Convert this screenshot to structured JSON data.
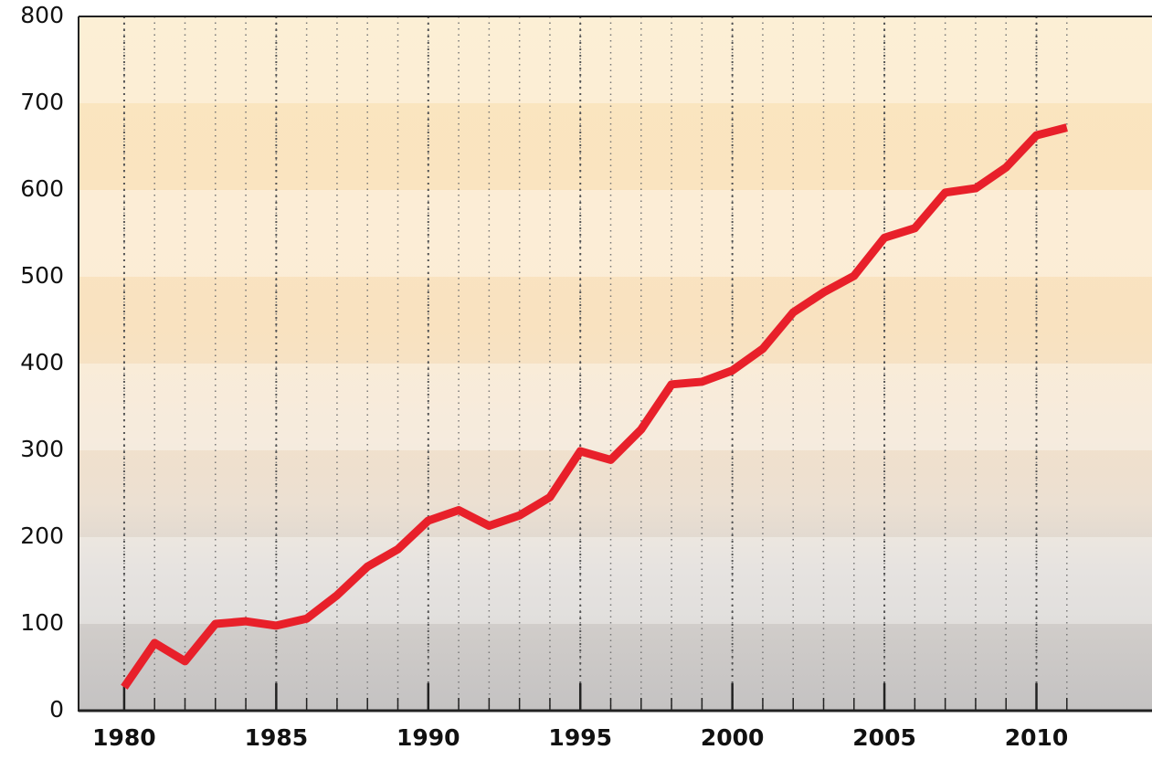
{
  "chart_data": {
    "type": "line",
    "x": [
      1980,
      1981,
      1982,
      1983,
      1984,
      1985,
      1986,
      1987,
      1988,
      1989,
      1990,
      1991,
      1992,
      1993,
      1994,
      1995,
      1996,
      1997,
      1998,
      1999,
      2000,
      2001,
      2002,
      2003,
      2004,
      2005,
      2006,
      2007,
      2008,
      2009,
      2010,
      2011
    ],
    "series": [
      {
        "color": "#e8202a",
        "values": [
          27,
          78,
          57,
          100,
          103,
          98,
          106,
          133,
          166,
          186,
          219,
          231,
          213,
          225,
          246,
          299,
          289,
          324,
          376,
          379,
          392,
          417,
          459,
          482,
          501,
          545,
          556,
          597,
          602,
          626,
          663,
          672
        ]
      }
    ],
    "xlim": [
      1978.5,
      2013.8
    ],
    "xticks": [
      1980,
      1985,
      1990,
      1995,
      2000,
      2005,
      2010
    ],
    "ylim": [
      0,
      800
    ],
    "yticks": [
      0,
      100,
      200,
      300,
      400,
      500,
      600,
      700,
      800
    ],
    "grid": true
  }
}
